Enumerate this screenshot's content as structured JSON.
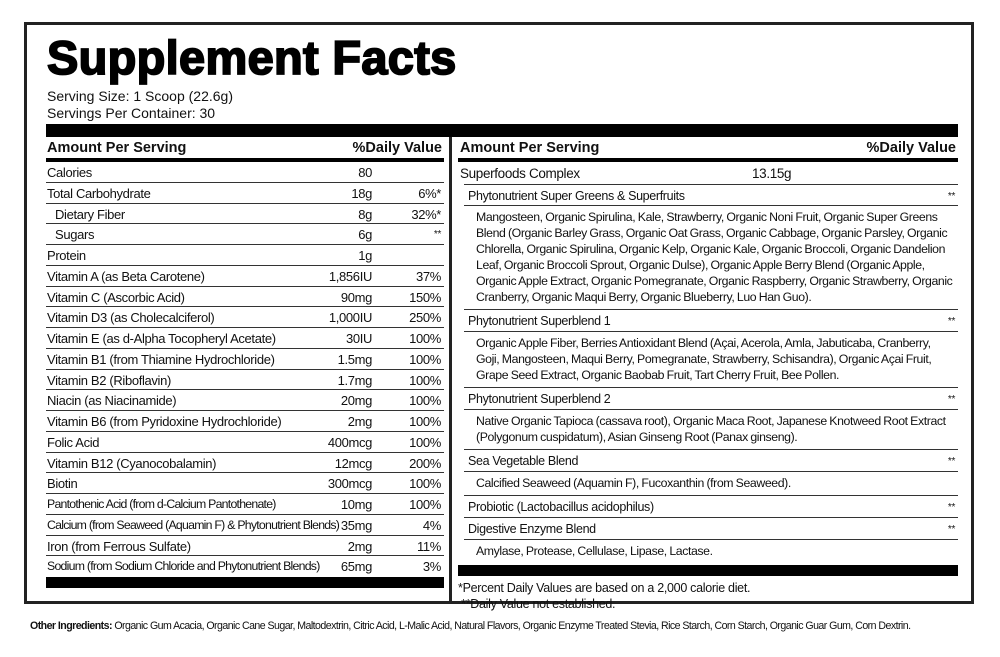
{
  "header": {
    "title": "Supplement Facts",
    "serving_size": "Serving Size: 1 Scoop (22.6g)",
    "servings_per_container": "Servings Per Container: 30"
  },
  "left": {
    "header_amount": "Amount Per Serving",
    "header_dv": "%Daily Value",
    "rows": [
      {
        "name": "Calories",
        "amount": "80",
        "dv": ""
      },
      {
        "name": "Total Carbohydrate",
        "amount": "18g",
        "dv": "6%*"
      },
      {
        "name": "Dietary Fiber",
        "amount": "8g",
        "dv": "32%*",
        "sub": true
      },
      {
        "name": "Sugars",
        "amount": "6g",
        "dv": "**",
        "sub": true
      },
      {
        "name": "Protein",
        "amount": "1g",
        "dv": ""
      },
      {
        "name": "Vitamin A (as Beta Carotene)",
        "amount": "1,856IU",
        "dv": "37%"
      },
      {
        "name": "Vitamin C (Ascorbic Acid)",
        "amount": "90mg",
        "dv": "150%"
      },
      {
        "name": "Vitamin D3 (as Cholecalciferol)",
        "amount": "1,000IU",
        "dv": "250%"
      },
      {
        "name": "Vitamin E (as d-Alpha Tocopheryl Acetate)",
        "amount": "30IU",
        "dv": "100%"
      },
      {
        "name": "Vitamin B1 (from Thiamine Hydrochloride)",
        "amount": "1.5mg",
        "dv": "100%"
      },
      {
        "name": "Vitamin B2 (Riboflavin)",
        "amount": "1.7mg",
        "dv": "100%"
      },
      {
        "name": "Niacin (as Niacinamide)",
        "amount": "20mg",
        "dv": "100%"
      },
      {
        "name": "Vitamin B6 (from Pyridoxine Hydrochloride)",
        "amount": "2mg",
        "dv": "100%"
      },
      {
        "name": "Folic Acid",
        "amount": "400mcg",
        "dv": "100%"
      },
      {
        "name": "Vitamin B12 (Cyanocobalamin)",
        "amount": "12mcg",
        "dv": "200%"
      },
      {
        "name": "Biotin",
        "amount": "300mcg",
        "dv": "100%"
      },
      {
        "name": "Pantothenic Acid (from d-Calcium Pantothenate)",
        "amount": "10mg",
        "dv": "100%"
      },
      {
        "name": "Calcium (from Seaweed (Aquamin F) & Phytonutrient Blends)",
        "amount": "35mg",
        "dv": "4%"
      },
      {
        "name": "Iron (from Ferrous Sulfate)",
        "amount": "2mg",
        "dv": "11%"
      },
      {
        "name": "Sodium (from Sodium Chloride and Phytonutrient Blends)",
        "amount": "65mg",
        "dv": "3%"
      }
    ]
  },
  "right": {
    "header_amount": "Amount Per Serving",
    "header_dv": "%Daily Value",
    "complex": {
      "name": "Superfoods Complex",
      "amount": "13.15g"
    },
    "blends": [
      {
        "name": "Phytonutrient Super Greens & Superfruits",
        "dv": "**",
        "ingredients": "Mangosteen, Organic Spirulina, Kale, Strawberry, Organic Noni Fruit, Organic Super Greens Blend (Organic Barley Grass, Organic Oat Grass, Organic Cabbage, Organic Parsley, Organic Chlorella, Organic Spirulina, Organic Kelp, Organic Kale, Organic Broccoli, Organic Dandelion Leaf, Organic Broccoli Sprout, Organic Dulse), Organic Apple Berry Blend (Organic Apple, Organic Apple Extract, Organic Pomegranate, Organic Raspberry, Organic Strawberry, Organic Cranberry, Organic Maqui Berry, Organic Blueberry, Luo Han Guo)."
      },
      {
        "name": "Phytonutrient Superblend 1",
        "dv": "**",
        "ingredients": "Organic Apple Fiber, Berries Antioxidant Blend (Açai, Acerola, Amla, Jabuticaba, Cranberry, Goji, Mangosteen, Maqui Berry, Pomegranate, Strawberry, Schisandra), Organic Açai Fruit, Grape Seed Extract, Organic Baobab Fruit, Tart Cherry Fruit, Bee Pollen."
      },
      {
        "name": "Phytonutrient Superblend 2",
        "dv": "**",
        "ingredients": "Native Organic Tapioca (cassava root), Organic Maca Root, Japanese Knotweed Root Extract (Polygonum cuspidatum), Asian Ginseng Root (Panax ginseng)."
      },
      {
        "name": "Sea Vegetable Blend",
        "dv": "**",
        "ingredients": "Calcified Seaweed (Aquamin F), Fucoxanthin (from Seaweed)."
      },
      {
        "name": "Probiotic (Lactobacillus acidophilus)",
        "dv": "**",
        "ingredients": ""
      },
      {
        "name": "Digestive Enzyme Blend",
        "dv": "**",
        "ingredients": "Amylase, Protease, Cellulase, Lipase, Lactase."
      }
    ],
    "footnotes": [
      "*Percent Daily Values are based on a 2,000 calorie diet.",
      " **Daily Value not established."
    ]
  },
  "other_ingredients": {
    "label": "Other Ingredients:",
    "text": " Organic Gum Acacia, Organic Cane Sugar, Maltodextrin, Citric Acid, L-Malic Acid, Natural Flavors, Organic Enzyme Treated Stevia, Rice Starch, Corn Starch, Organic Guar Gum, Corn Dextrin."
  }
}
